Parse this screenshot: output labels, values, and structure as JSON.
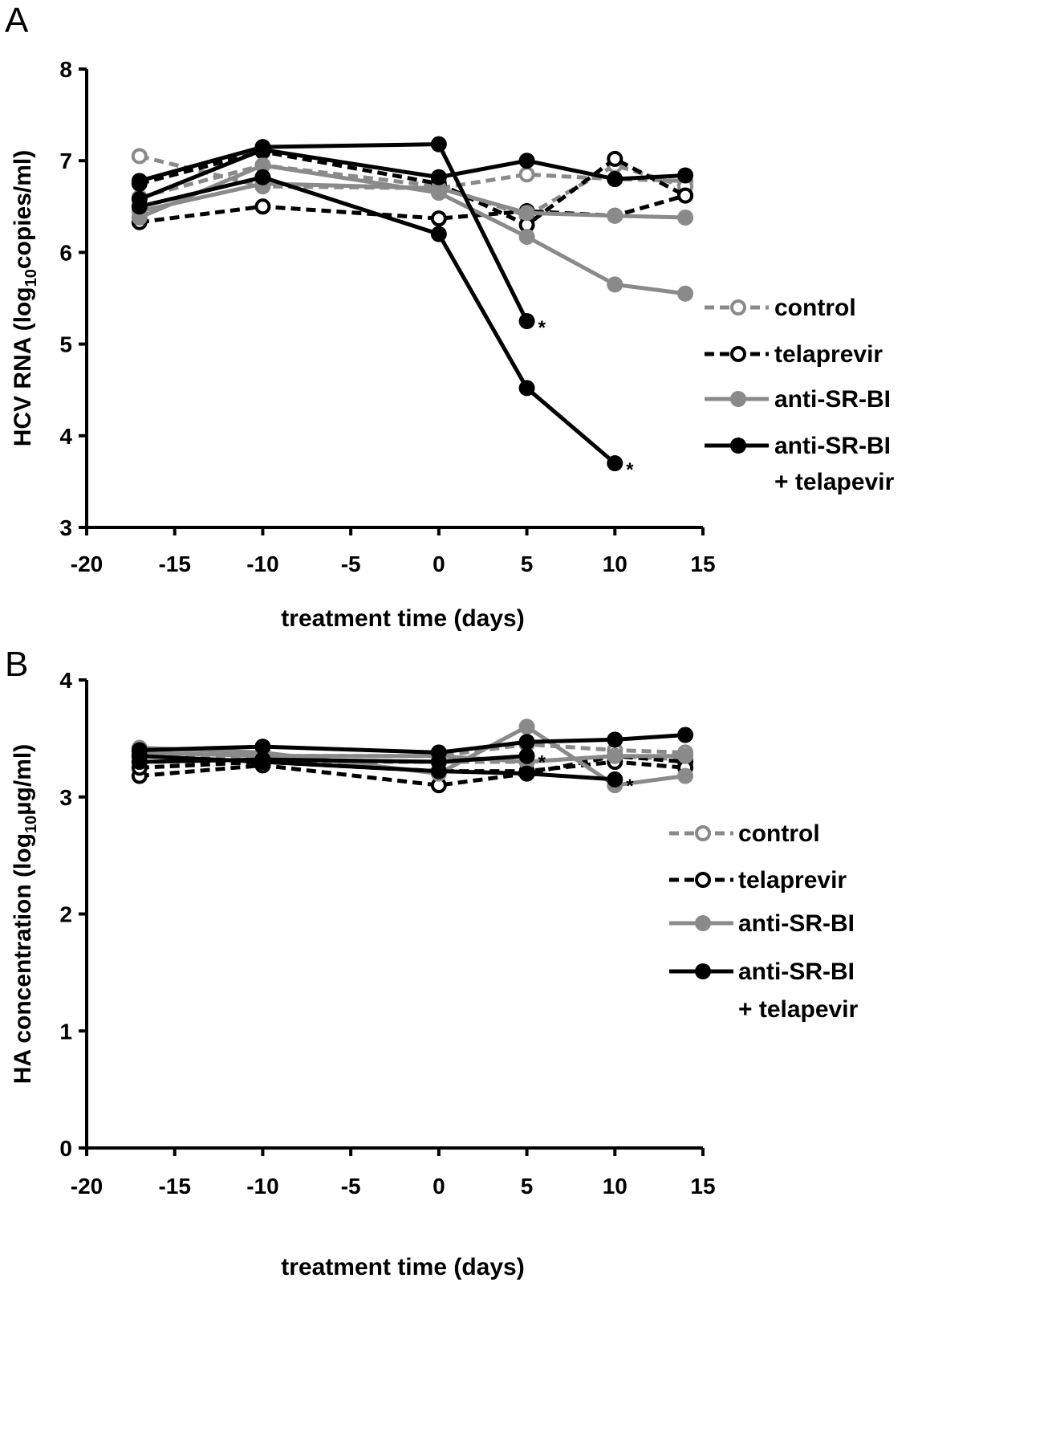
{
  "chart_data": [
    {
      "type": "line",
      "panel_label": "A",
      "xlabel": "treatment time (days)",
      "ylabel_main": "HCV RNA (log",
      "ylabel_sub": "10",
      "ylabel_tail": "copies/ml)",
      "xlim": [
        -20,
        15
      ],
      "ylim": [
        3,
        8
      ],
      "xticks": [
        -20,
        -15,
        -10,
        -5,
        0,
        5,
        10,
        15
      ],
      "yticks": [
        3,
        4,
        5,
        6,
        7,
        8
      ],
      "x": [
        -17,
        -10,
        0,
        5,
        10,
        14
      ],
      "legend": [
        "control",
        "telaprevir",
        "anti-SR-BI",
        "anti-SR-BI",
        "+ telapevir"
      ],
      "annotation": "*",
      "series": [
        {
          "group": "control",
          "values": [
            7.05,
            6.72,
            6.7,
            6.85,
            6.8,
            6.78
          ]
        },
        {
          "group": "control",
          "values": [
            6.6,
            6.95,
            6.72,
            6.4,
            6.95,
            6.72
          ]
        },
        {
          "group": "telaprevir",
          "values": [
            6.33,
            6.5,
            6.37,
            6.45,
            6.4,
            6.62
          ]
        },
        {
          "group": "telaprevir",
          "values": [
            6.75,
            7.1,
            6.75,
            6.3,
            7.02,
            6.62
          ]
        },
        {
          "group": "anti-SR-BI",
          "values": [
            6.38,
            6.95,
            6.65,
            6.17,
            5.65,
            5.55
          ]
        },
        {
          "group": "anti-SR-BI",
          "values": [
            6.45,
            6.75,
            6.7,
            6.43,
            6.4,
            6.38
          ]
        },
        {
          "group": "anti-SR-BI + telapevir",
          "values": [
            6.78,
            7.15,
            7.18,
            5.25,
            null,
            null
          ],
          "star_at": 5
        },
        {
          "group": "anti-SR-BI + telapevir",
          "values": [
            6.5,
            6.82,
            6.2,
            4.52,
            3.7,
            null
          ],
          "star_at": 10
        },
        {
          "group": "anti-SR-BI + telapevir",
          "values": [
            6.58,
            7.12,
            6.82,
            7.0,
            6.8,
            6.84
          ]
        }
      ]
    },
    {
      "type": "line",
      "panel_label": "B",
      "xlabel": "treatment time (days)",
      "ylabel_main": "HA concentration (log",
      "ylabel_sub": "10",
      "ylabel_tail": "µg/ml)",
      "xlim": [
        -20,
        15
      ],
      "ylim": [
        0,
        4
      ],
      "xticks": [
        -20,
        -15,
        -10,
        -5,
        0,
        5,
        10,
        15
      ],
      "yticks": [
        0,
        1,
        2,
        3,
        4
      ],
      "x": [
        -17,
        -10,
        0,
        5,
        10,
        14
      ],
      "legend": [
        "control",
        "telaprevir",
        "anti-SR-BI",
        "anti-SR-BI",
        "+ telapevir"
      ],
      "annotation": "*",
      "series": [
        {
          "group": "control",
          "values": [
            3.35,
            3.35,
            3.35,
            3.45,
            3.4,
            3.38
          ]
        },
        {
          "group": "control",
          "values": [
            3.3,
            3.3,
            3.3,
            3.3,
            3.35,
            3.32
          ]
        },
        {
          "group": "telaprevir",
          "values": [
            3.18,
            3.27,
            3.1,
            3.2,
            3.35,
            3.3
          ]
        },
        {
          "group": "telaprevir",
          "values": [
            3.25,
            3.3,
            3.22,
            3.22,
            3.3,
            3.25
          ]
        },
        {
          "group": "anti-SR-BI",
          "values": [
            3.42,
            3.38,
            3.2,
            3.6,
            3.1,
            3.18
          ]
        },
        {
          "group": "anti-SR-BI",
          "values": [
            3.38,
            3.35,
            3.35,
            3.3,
            3.35,
            3.35
          ]
        },
        {
          "group": "anti-SR-BI + telapevir",
          "values": [
            3.3,
            3.32,
            3.3,
            3.35,
            null,
            null
          ],
          "star_at": 5
        },
        {
          "group": "anti-SR-BI + telapevir",
          "values": [
            3.35,
            3.3,
            3.22,
            3.2,
            3.15,
            null
          ],
          "star_at": 10
        },
        {
          "group": "anti-SR-BI + telapevir",
          "values": [
            3.4,
            3.43,
            3.38,
            3.47,
            3.49,
            3.53
          ]
        }
      ]
    }
  ]
}
